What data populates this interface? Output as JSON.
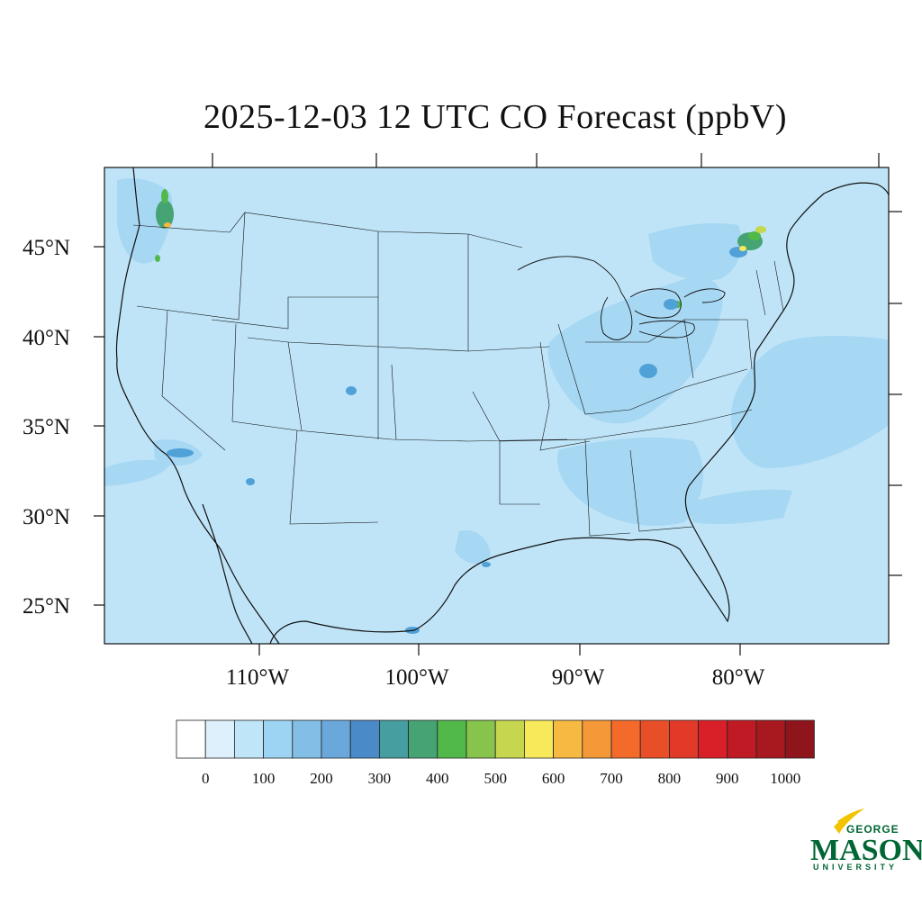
{
  "title": "2025-12-03 12 UTC CO Forecast (ppbV)",
  "map": {
    "latitude_labels": [
      "45°N",
      "40°N",
      "35°N",
      "30°N",
      "25°N"
    ],
    "longitude_labels": [
      "110°W",
      "100°W",
      "90°W",
      "80°W"
    ],
    "background_color": "#bfe4f8",
    "feature_color": "#a6d7f3",
    "hotspot_colors": [
      "#4fa1d8",
      "#46a474",
      "#51b84a",
      "#c6d74f",
      "#f7e95a",
      "#f6b942"
    ],
    "legend": "bottom-center"
  },
  "colorbar": {
    "colors": [
      "#ffffff",
      "#ddf0fb",
      "#bfe5f9",
      "#9dd4f3",
      "#82bee6",
      "#6aa8dc",
      "#4a8ac8",
      "#479ea0",
      "#46a474",
      "#51b84a",
      "#86c44c",
      "#c6d74f",
      "#f7e95a",
      "#f6b942",
      "#f59838",
      "#f36a2a",
      "#e84f28",
      "#e23a29",
      "#d91f27",
      "#c01a24",
      "#a8181f",
      "#8e151b"
    ],
    "tick_labels": [
      "0",
      "100",
      "200",
      "300",
      "400",
      "500",
      "600",
      "700",
      "800",
      "900",
      "1000"
    ]
  },
  "logo": {
    "line1": "GEORGE",
    "line2": "MASON",
    "line3": "UNIVERSITY"
  }
}
